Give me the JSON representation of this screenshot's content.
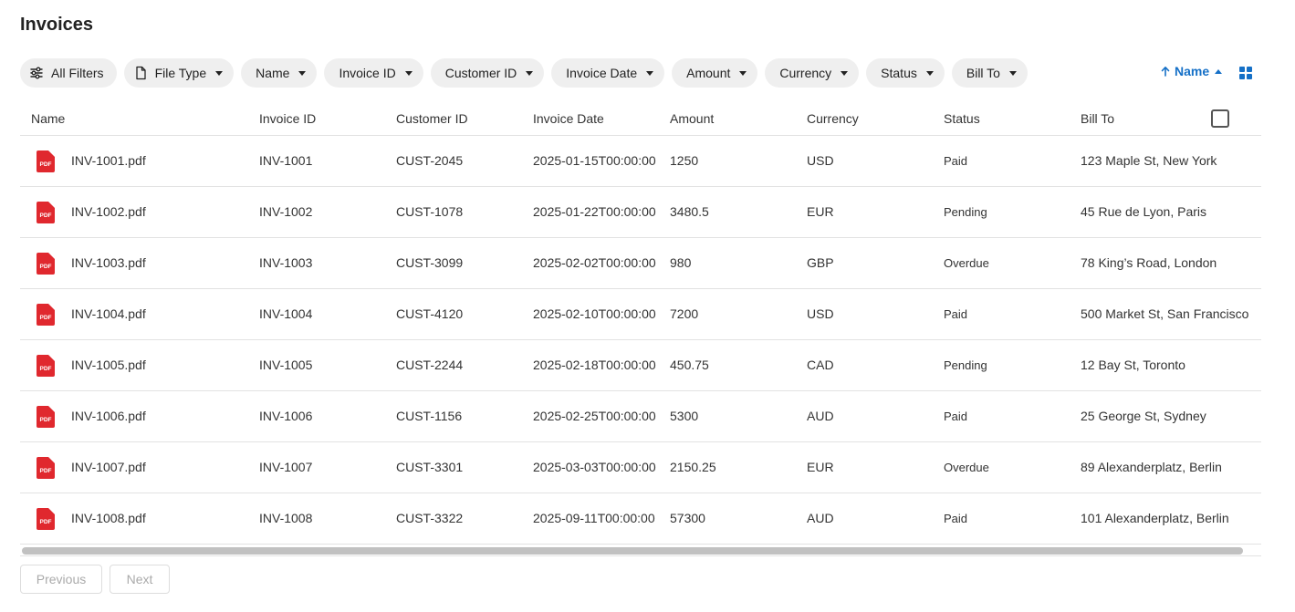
{
  "page": {
    "title": "Invoices"
  },
  "filters": [
    {
      "label": "All Filters",
      "icon": "sliders-icon"
    },
    {
      "label": "File Type",
      "icon": "file-icon"
    },
    {
      "label": "Name"
    },
    {
      "label": "Invoice ID"
    },
    {
      "label": "Customer ID"
    },
    {
      "label": "Invoice Date"
    },
    {
      "label": "Amount"
    },
    {
      "label": "Currency"
    },
    {
      "label": "Status"
    },
    {
      "label": "Bill To"
    }
  ],
  "sort": {
    "label": "Name",
    "direction": "ascending"
  },
  "view_toggle": {
    "icon": "grid-view-icon"
  },
  "table": {
    "headers": [
      "Name",
      "Invoice ID",
      "Customer ID",
      "Invoice Date",
      "Amount",
      "Currency",
      "Status",
      "Bill To"
    ],
    "rows": [
      {
        "name": "INV-1001.pdf",
        "invoice_id": "INV-1001",
        "customer_id": "CUST-2045",
        "invoice_date": "2025-01-15T00:00:00",
        "amount": "1250",
        "currency": "USD",
        "status": "Paid",
        "bill_to": "123 Maple St, New York"
      },
      {
        "name": "INV-1002.pdf",
        "invoice_id": "INV-1002",
        "customer_id": "CUST-1078",
        "invoice_date": "2025-01-22T00:00:00",
        "amount": "3480.5",
        "currency": "EUR",
        "status": "Pending",
        "bill_to": "45 Rue de Lyon, Paris"
      },
      {
        "name": "INV-1003.pdf",
        "invoice_id": "INV-1003",
        "customer_id": "CUST-3099",
        "invoice_date": "2025-02-02T00:00:00",
        "amount": "980",
        "currency": "GBP",
        "status": "Overdue",
        "bill_to": "78 King’s Road, London"
      },
      {
        "name": "INV-1004.pdf",
        "invoice_id": "INV-1004",
        "customer_id": "CUST-4120",
        "invoice_date": "2025-02-10T00:00:00",
        "amount": "7200",
        "currency": "USD",
        "status": "Paid",
        "bill_to": "500 Market St, San Francisco"
      },
      {
        "name": "INV-1005.pdf",
        "invoice_id": "INV-1005",
        "customer_id": "CUST-2244",
        "invoice_date": "2025-02-18T00:00:00",
        "amount": "450.75",
        "currency": "CAD",
        "status": "Pending",
        "bill_to": "12 Bay St, Toronto"
      },
      {
        "name": "INV-1006.pdf",
        "invoice_id": "INV-1006",
        "customer_id": "CUST-1156",
        "invoice_date": "2025-02-25T00:00:00",
        "amount": "5300",
        "currency": "AUD",
        "status": "Paid",
        "bill_to": "25 George St, Sydney"
      },
      {
        "name": "INV-1007.pdf",
        "invoice_id": "INV-1007",
        "customer_id": "CUST-3301",
        "invoice_date": "2025-03-03T00:00:00",
        "amount": "2150.25",
        "currency": "EUR",
        "status": "Overdue",
        "bill_to": "89 Alexanderplatz, Berlin"
      },
      {
        "name": "INV-1008.pdf",
        "invoice_id": "INV-1008",
        "customer_id": "CUST-3322",
        "invoice_date": "2025-09-11T00:00:00",
        "amount": "57300",
        "currency": "AUD",
        "status": "Paid",
        "bill_to": "101 Alexanderplatz, Berlin"
      }
    ]
  },
  "pagination": {
    "previous_label": "Previous",
    "next_label": "Next"
  },
  "colors": {
    "accent": "#1570c7",
    "pdf_red": "#e0282e",
    "chip_bg": "#efefef"
  }
}
